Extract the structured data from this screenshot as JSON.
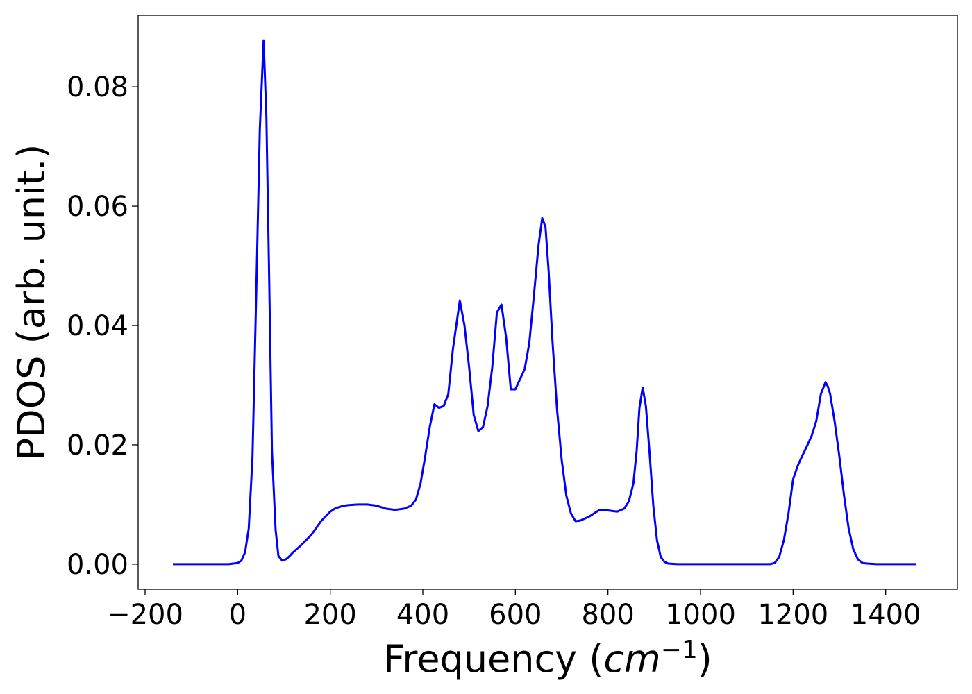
{
  "chart_data": {
    "type": "line",
    "title": "",
    "xlabel": "Frequency",
    "xlabel_unit_base": "cm",
    "xlabel_unit_exp": "−1",
    "ylabel": "PDOS (arb. unit.)",
    "xlim": [
      -215,
      1555
    ],
    "ylim": [
      -0.0042,
      0.092
    ],
    "xticks": [
      -200,
      0,
      200,
      400,
      600,
      800,
      1000,
      1200,
      1400
    ],
    "xtick_labels": [
      "−200",
      "0",
      "200",
      "400",
      "600",
      "800",
      "1000",
      "1200",
      "1400"
    ],
    "yticks": [
      0.0,
      0.02,
      0.04,
      0.06,
      0.08
    ],
    "ytick_labels": [
      "0.00",
      "0.02",
      "0.04",
      "0.06",
      "0.08"
    ],
    "grid": false,
    "series": [
      {
        "color": "#0000ff",
        "x": [
          -140,
          -100,
          -60,
          -20,
          0,
          8,
          16,
          24,
          32,
          40,
          48,
          56,
          62,
          68,
          74,
          82,
          88,
          96,
          104,
          110,
          120,
          140,
          160,
          180,
          200,
          210,
          220,
          230,
          240,
          260,
          280,
          300,
          320,
          340,
          360,
          375,
          385,
          395,
          405,
          415,
          425,
          435,
          445,
          455,
          465,
          480,
          490,
          500,
          510,
          520,
          530,
          540,
          550,
          560,
          570,
          580,
          590,
          600,
          610,
          620,
          630,
          640,
          650,
          658,
          665,
          672,
          680,
          690,
          700,
          710,
          720,
          730,
          740,
          760,
          780,
          800,
          820,
          835,
          845,
          855,
          862,
          868,
          875,
          882,
          890,
          898,
          906,
          914,
          922,
          930,
          950,
          1000,
          1050,
          1100,
          1150,
          1160,
          1170,
          1180,
          1190,
          1200,
          1210,
          1220,
          1230,
          1240,
          1250,
          1260,
          1270,
          1275,
          1280,
          1290,
          1300,
          1310,
          1320,
          1330,
          1340,
          1350,
          1360,
          1380,
          1420,
          1465
        ],
        "y": [
          0.0,
          0.0,
          0.0,
          0.0,
          0.0002,
          0.0006,
          0.002,
          0.006,
          0.018,
          0.045,
          0.073,
          0.0878,
          0.075,
          0.048,
          0.019,
          0.0057,
          0.0014,
          0.0006,
          0.0008,
          0.0012,
          0.002,
          0.0034,
          0.005,
          0.0072,
          0.0088,
          0.0093,
          0.0096,
          0.0098,
          0.0099,
          0.01,
          0.01,
          0.0098,
          0.0093,
          0.0091,
          0.0093,
          0.0098,
          0.0108,
          0.0135,
          0.018,
          0.023,
          0.0268,
          0.0262,
          0.0265,
          0.0285,
          0.036,
          0.0442,
          0.04,
          0.033,
          0.025,
          0.0223,
          0.023,
          0.0265,
          0.033,
          0.0422,
          0.0435,
          0.038,
          0.0293,
          0.0293,
          0.031,
          0.0327,
          0.037,
          0.045,
          0.0535,
          0.058,
          0.0565,
          0.049,
          0.0375,
          0.026,
          0.0175,
          0.0115,
          0.0085,
          0.0072,
          0.0073,
          0.008,
          0.009,
          0.009,
          0.0088,
          0.0093,
          0.0105,
          0.0135,
          0.019,
          0.0262,
          0.0296,
          0.0265,
          0.0185,
          0.0098,
          0.004,
          0.0012,
          0.0004,
          0.0001,
          0.0,
          0.0,
          0.0,
          0.0,
          0.0,
          0.0002,
          0.0012,
          0.004,
          0.0085,
          0.0142,
          0.0165,
          0.0182,
          0.0198,
          0.0215,
          0.024,
          0.0285,
          0.0305,
          0.0298,
          0.0285,
          0.0238,
          0.018,
          0.0115,
          0.006,
          0.0025,
          0.0008,
          0.0002,
          0.0001,
          0.0,
          0.0,
          0.0
        ]
      }
    ]
  }
}
